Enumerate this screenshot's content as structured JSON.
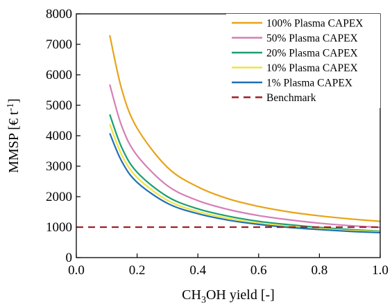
{
  "chart_data": {
    "type": "line",
    "xlabel_parts": [
      "CH",
      "3",
      "OH yield [-]"
    ],
    "ylabel_parts": [
      "MMSP [€ t",
      "-1",
      "]"
    ],
    "xlim": [
      0.0,
      1.0
    ],
    "ylim": [
      0,
      8000
    ],
    "x_ticks": [
      "0.0",
      "0.2",
      "0.4",
      "0.6",
      "0.8",
      "1.0"
    ],
    "y_ticks": [
      "0",
      "1000",
      "2000",
      "3000",
      "4000",
      "5000",
      "6000",
      "7000",
      "8000"
    ],
    "grid": false,
    "legend_position": "top-right",
    "x": [
      0.11,
      0.15,
      0.2,
      0.3,
      0.4,
      0.5,
      0.6,
      0.7,
      0.8,
      0.9,
      1.0
    ],
    "series": [
      {
        "name": "100% Plasma CAPEX",
        "color": "#E8A317",
        "style": "solid",
        "values": [
          7300,
          5500,
          4250,
          2960,
          2320,
          1930,
          1680,
          1500,
          1370,
          1270,
          1190
        ]
      },
      {
        "name": "50% Plasma CAPEX",
        "color": "#D47FB8",
        "style": "solid",
        "values": [
          5680,
          4300,
          3350,
          2360,
          1870,
          1580,
          1380,
          1240,
          1130,
          1050,
          990
        ]
      },
      {
        "name": "20% Plasma CAPEX",
        "color": "#1A9E74",
        "style": "solid",
        "values": [
          4700,
          3600,
          2800,
          2000,
          1600,
          1360,
          1190,
          1080,
          990,
          920,
          870
        ]
      },
      {
        "name": "10% Plasma CAPEX",
        "color": "#F0E442",
        "style": "solid",
        "values": [
          4380,
          3360,
          2630,
          1880,
          1510,
          1290,
          1130,
          1030,
          950,
          890,
          850
        ]
      },
      {
        "name": "1% Plasma CAPEX",
        "color": "#1F6FB5",
        "style": "solid",
        "values": [
          4080,
          3150,
          2470,
          1780,
          1440,
          1230,
          1090,
          990,
          920,
          860,
          820
        ]
      },
      {
        "name": "Benchmark",
        "color": "#A01F24",
        "style": "dashed",
        "values": [
          1000,
          1000,
          1000,
          1000,
          1000,
          1000,
          1000,
          1000,
          1000,
          1000,
          1000
        ]
      }
    ]
  }
}
